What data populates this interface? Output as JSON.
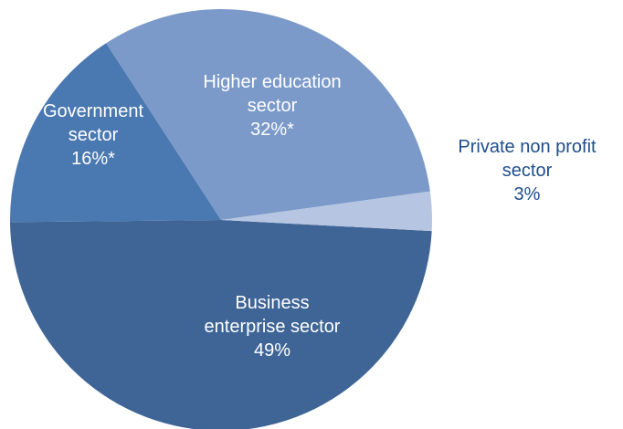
{
  "chart_data": {
    "type": "pie",
    "slices": [
      {
        "label_lines": [
          "Business",
          "enterprise sector",
          "49%"
        ],
        "value": 49,
        "color": "#3e6596"
      },
      {
        "label_lines": [
          "Government",
          "sector",
          "16%*"
        ],
        "value": 16,
        "color": "#4a78b0"
      },
      {
        "label_lines": [
          "Higher education",
          "sector",
          "32%*"
        ],
        "value": 32,
        "color": "#7b9ac9"
      },
      {
        "label_lines": [
          "Private non profit",
          "sector",
          "3%"
        ],
        "value": 3,
        "color": "#b6c6e2"
      }
    ]
  }
}
